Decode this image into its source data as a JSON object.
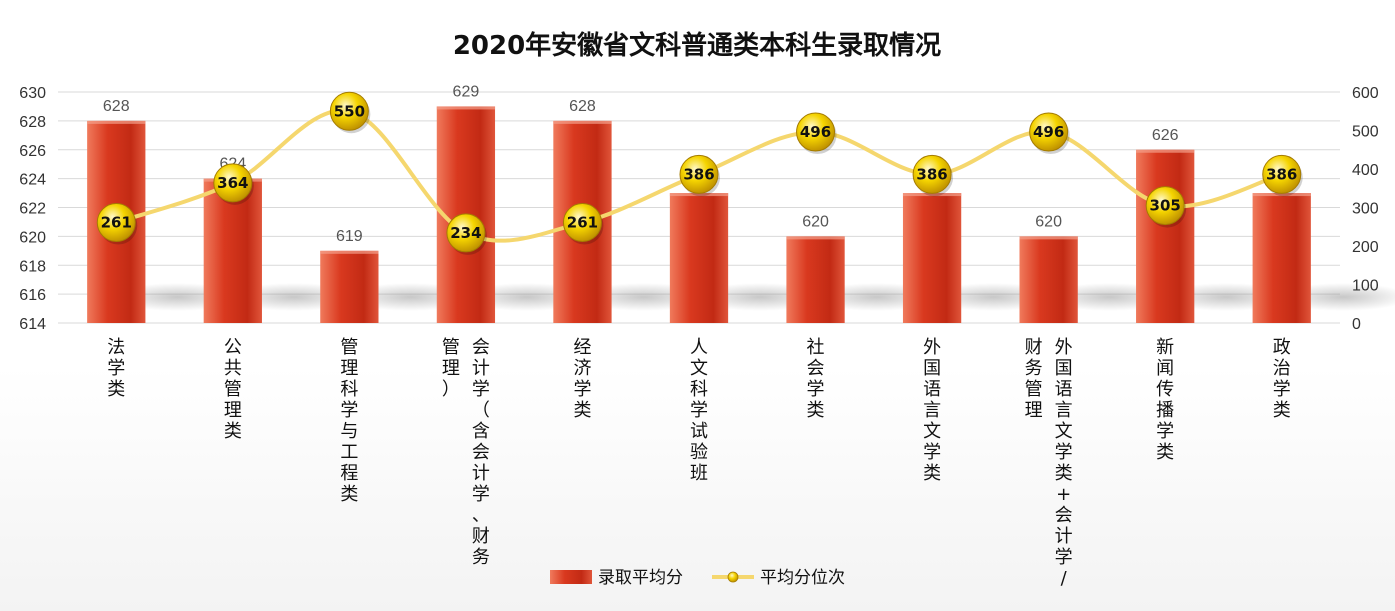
{
  "chart_data": {
    "type": "bar",
    "title": "2020年安徽省文科普通类本科生录取情况",
    "categories": [
      [
        "法学类"
      ],
      [
        "公共管理类"
      ],
      [
        "管理科学与工程类"
      ],
      [
        "会计学（含会计学、财务",
        "管理）"
      ],
      [
        "经济学类"
      ],
      [
        "人文科学试验班"
      ],
      [
        "社会学类"
      ],
      [
        "外国语言文学类"
      ],
      [
        "外国语言文学类+会计学/",
        "财务管理"
      ],
      [
        "新闻传播学类"
      ],
      [
        "政治学类"
      ]
    ],
    "series": [
      {
        "name": "录取平均分",
        "type": "bar",
        "axis": "left",
        "values": [
          628,
          624,
          619,
          629,
          628,
          623,
          620,
          623,
          620,
          626,
          623
        ],
        "color": "#d9391f"
      },
      {
        "name": "平均分位次",
        "type": "line",
        "axis": "right",
        "values": [
          261,
          364,
          550,
          234,
          261,
          386,
          496,
          386,
          496,
          305,
          386
        ],
        "color": "#f5d76e"
      }
    ],
    "y_left": {
      "min": 614,
      "max": 630,
      "ticks": [
        "614",
        "616",
        "618",
        "620",
        "622",
        "624",
        "626",
        "628",
        "630"
      ]
    },
    "y_right": {
      "min": 0,
      "max": 600,
      "ticks": [
        "0",
        "100",
        "200",
        "300",
        "400",
        "500",
        "600"
      ]
    },
    "grid": true,
    "legend": "bottom"
  }
}
